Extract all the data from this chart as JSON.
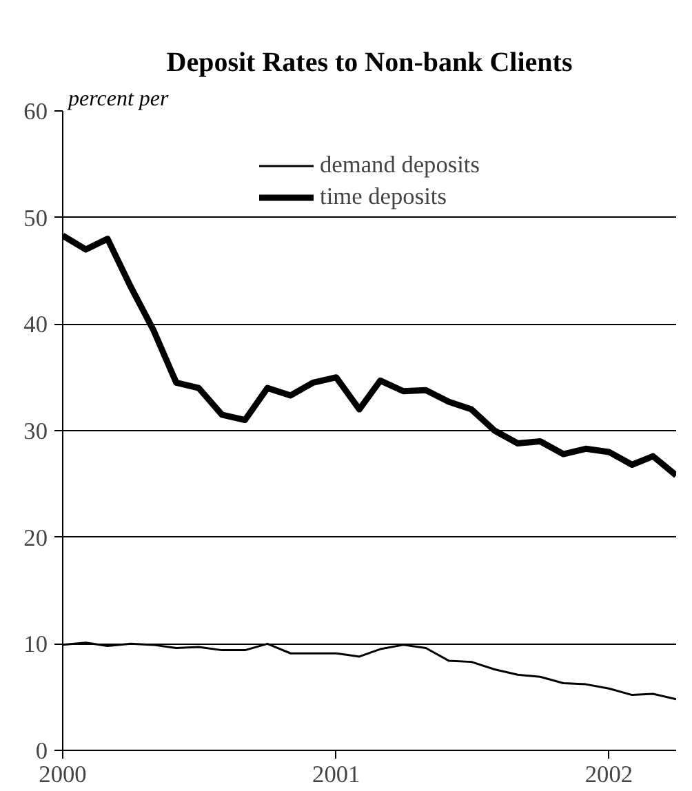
{
  "chart_data": {
    "type": "line",
    "title": "Deposit Rates to Non-bank Clients",
    "ylabel": "percent per",
    "x": [
      "2000-01",
      "2000-02",
      "2000-03",
      "2000-04",
      "2000-05",
      "2000-06",
      "2000-07",
      "2000-08",
      "2000-09",
      "2000-10",
      "2000-11",
      "2000-12",
      "2001-01",
      "2001-02",
      "2001-03",
      "2001-04",
      "2001-05",
      "2001-06",
      "2001-07",
      "2001-08",
      "2001-09",
      "2001-10",
      "2001-11",
      "2001-12",
      "2002-01",
      "2002-02",
      "2002-03",
      "2002-04"
    ],
    "series": [
      {
        "name": "demand deposits",
        "color": "#000000",
        "values": [
          9.9,
          10.1,
          9.8,
          10,
          9.9,
          9.6,
          9.7,
          9.4,
          9.4,
          10,
          9.1,
          9.1,
          9.1,
          8.8,
          9.5,
          9.9,
          9.6,
          8.4,
          8.3,
          7.6,
          7.1,
          6.9,
          6.3,
          6.2,
          5.8,
          5.2,
          5.3,
          4.8
        ]
      },
      {
        "name": "time deposits",
        "color": "#000000",
        "values": [
          48.3,
          47,
          48,
          43.5,
          39.5,
          34.5,
          34,
          31.5,
          31,
          34,
          33.3,
          34.5,
          35,
          32,
          34.7,
          33.7,
          33.8,
          32.7,
          32,
          30,
          28.8,
          29,
          27.8,
          28.3,
          28,
          26.8,
          27.6,
          25.8
        ]
      }
    ],
    "xlim": [
      "2000-01",
      "2002-04"
    ],
    "xticks": [
      {
        "value": "2000-01",
        "label": "2000"
      },
      {
        "value": "2001-01",
        "label": "2001"
      },
      {
        "value": "2002-01",
        "label": "2002"
      }
    ],
    "ylim": [
      0,
      60
    ],
    "yticks": [
      0,
      10,
      20,
      30,
      40,
      50,
      60
    ],
    "grid": "y",
    "legend": "top"
  }
}
